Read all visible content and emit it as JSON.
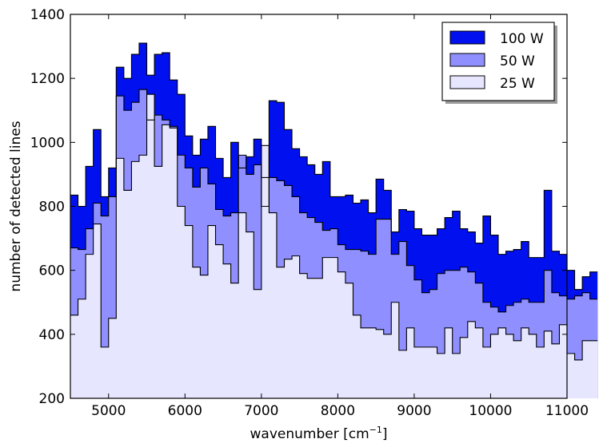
{
  "chart_data": {
    "type": "area",
    "xlabel": "wavenumber [cm",
    "xlabel_sup": "−1",
    "xlabel_end": "]",
    "ylabel": "number of detected lines",
    "xlim": [
      4500,
      11000
    ],
    "ylim": [
      200,
      1400
    ],
    "x_ticks": [
      5000,
      6000,
      7000,
      8000,
      9000,
      10000,
      11000
    ],
    "y_ticks": [
      200,
      400,
      600,
      800,
      1000,
      1200,
      1400
    ],
    "grid": false,
    "legend_position": "top-right",
    "bin_width": 100,
    "x_start": 4500,
    "series": [
      {
        "name": "100 W",
        "color": "#0010ee",
        "values": [
          835,
          800,
          925,
          1040,
          830,
          920,
          1235,
          1200,
          1275,
          1310,
          1210,
          1275,
          1280,
          1195,
          1150,
          1020,
          960,
          1010,
          1050,
          950,
          890,
          1000,
          920,
          955,
          1010,
          890,
          1130,
          1125,
          1040,
          980,
          955,
          930,
          900,
          940,
          830,
          830,
          835,
          810,
          820,
          780,
          885,
          850,
          720,
          790,
          785,
          730,
          710,
          710,
          730,
          765,
          785,
          730,
          720,
          685,
          770,
          710,
          650,
          660,
          665,
          690,
          640,
          640,
          850,
          660,
          650,
          600,
          540,
          580,
          595
        ]
      },
      {
        "name": "50 W",
        "color": "#8f8fff",
        "values": [
          670,
          665,
          730,
          810,
          770,
          830,
          1145,
          1100,
          1125,
          1165,
          1070,
          1085,
          1070,
          1050,
          960,
          920,
          860,
          920,
          870,
          790,
          770,
          780,
          960,
          900,
          930,
          800,
          890,
          880,
          865,
          830,
          780,
          765,
          750,
          725,
          730,
          680,
          665,
          665,
          660,
          650,
          760,
          760,
          650,
          690,
          615,
          570,
          530,
          540,
          590,
          600,
          600,
          610,
          595,
          560,
          500,
          485,
          470,
          490,
          500,
          510,
          500,
          500,
          600,
          530,
          520,
          510,
          520,
          530,
          510
        ]
      },
      {
        "name": "25 W",
        "color": "#e6e6ff",
        "values": [
          460,
          510,
          650,
          745,
          360,
          450,
          950,
          850,
          940,
          960,
          1150,
          925,
          1055,
          1045,
          800,
          740,
          610,
          585,
          740,
          680,
          620,
          560,
          780,
          720,
          540,
          990,
          780,
          610,
          635,
          645,
          590,
          575,
          575,
          640,
          640,
          595,
          560,
          460,
          420,
          420,
          415,
          400,
          500,
          350,
          420,
          360,
          360,
          360,
          340,
          420,
          340,
          390,
          440,
          420,
          360,
          400,
          420,
          400,
          380,
          420,
          400,
          360,
          410,
          370,
          430,
          340,
          320,
          380,
          380
        ]
      }
    ]
  }
}
